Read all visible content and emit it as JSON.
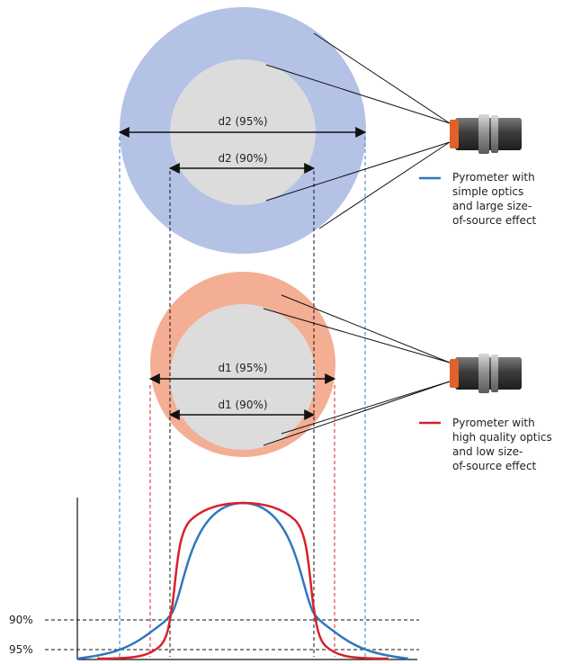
{
  "colors": {
    "blue_disk": "#b4c2e6",
    "salmon_disk": "#f4ae93",
    "inner_disk": "#dcdcdc",
    "blue_curve": "#2f78bd",
    "red_curve": "#d8212c",
    "guide": "#111111"
  },
  "labels": {
    "d2_95": "d2 (95%)",
    "d2_90": "d2 (90%)",
    "d1_95": "d1 (95%)",
    "d1_90": "d1 (90%)",
    "y90": "90%",
    "y95": "95%"
  },
  "legend": {
    "blue": [
      "Pyrometer with",
      "simple optics",
      "and large size-",
      "of-source effect"
    ],
    "red": [
      "Pyrometer with",
      "high quality optics",
      "and low size-",
      "of-source effect"
    ]
  },
  "icons": {
    "sensor_top": "pyrometer-sensor-icon",
    "sensor_bottom": "pyrometer-sensor-icon"
  }
}
